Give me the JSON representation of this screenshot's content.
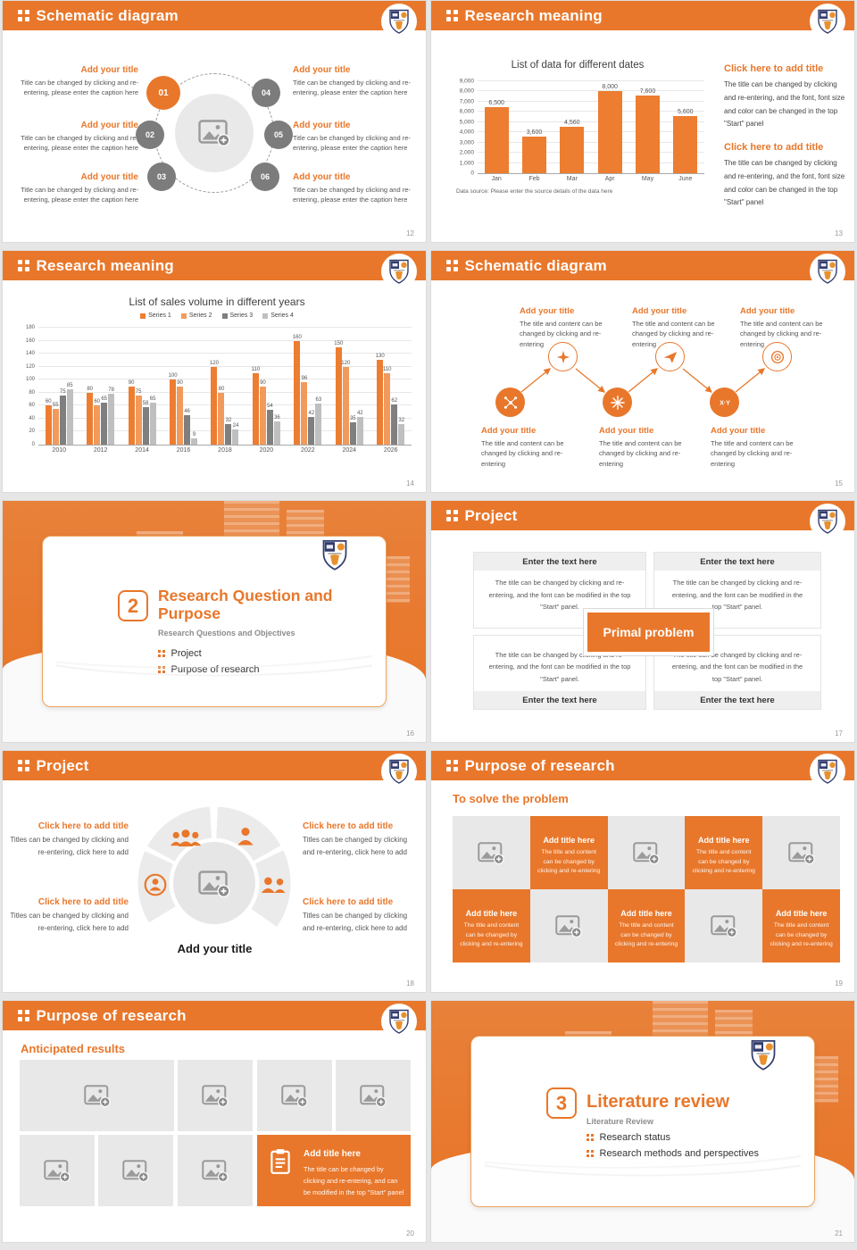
{
  "palette": {
    "accent": "#E8772B",
    "tile_gray": "#E8E8E8",
    "series": [
      "#ED7D31",
      "#F29A5C",
      "#7F7F7F",
      "#BFBFBF"
    ]
  },
  "icons": {
    "logo": "university-crest",
    "placeholder": "image-placeholder-icon",
    "flow": [
      "network-icon",
      "sparkle-icon",
      "snowflake-icon",
      "paper-plane-icon",
      "xy-icon",
      "target-icon"
    ],
    "ring": [
      "group-icon",
      "person-icon",
      "person-circle-icon",
      "group2-icon"
    ],
    "callout": "clipboard-icon"
  },
  "slides": [
    {
      "header": "Schematic diagram",
      "page": "12",
      "items": [
        {
          "num": "01",
          "title": "Add your title",
          "text": "Title can be changed by clicking and re-entering, please enter the caption here"
        },
        {
          "num": "02",
          "title": "Add your title",
          "text": "Title can be changed by clicking and re-entering, please enter the caption here"
        },
        {
          "num": "03",
          "title": "Add your title",
          "text": "Title can be changed by clicking and re-entering, please enter the caption here"
        },
        {
          "num": "04",
          "title": "Add your title",
          "text": "Title can be changed by clicking and re-entering, please enter the caption here"
        },
        {
          "num": "05",
          "title": "Add your title",
          "text": "Title can be changed by clicking and re-entering, please enter the caption here"
        },
        {
          "num": "06",
          "title": "Add your title",
          "text": "Title can be changed by clicking and re-entering, please enter the caption here"
        }
      ]
    },
    {
      "header": "Research meaning",
      "page": "13",
      "blocks": [
        {
          "title": "Click here to add title",
          "text": "The title can be changed by clicking and re-entering, and the font, font size and color can be changed in the top \"Start\" panel"
        },
        {
          "title": "Click here to add title",
          "text": "The title can be changed by clicking and re-entering, and the font, font size and color can be changed in the top \"Start\" panel"
        }
      ]
    },
    {
      "header": "Research meaning",
      "page": "14"
    },
    {
      "header": "Schematic diagram",
      "page": "15",
      "top": [
        {
          "title": "Add your title",
          "text": "The title and content can be changed by clicking and re-entering"
        },
        {
          "title": "Add your title",
          "text": "The title and content can be changed by clicking and re-entering"
        },
        {
          "title": "Add your title",
          "text": "The title and content can be changed by clicking and re-entering"
        }
      ],
      "bottom": [
        {
          "title": "Add your title",
          "text": "The title and content can be changed by clicking and re-entering"
        },
        {
          "title": "Add your title",
          "text": "The title and content can be changed by clicking and re-entering"
        },
        {
          "title": "Add your title",
          "text": "The title and content can be changed by clicking and re-entering"
        }
      ]
    },
    {
      "page": "16",
      "number": "2",
      "title": "Research Question and Purpose",
      "subtitle": "Research Questions and Objectives",
      "items": [
        "Project",
        "Purpose of research"
      ]
    },
    {
      "header": "Project",
      "page": "17",
      "center": "Primal problem",
      "box_header": "Enter the text here",
      "box_text": "The title can be changed by clicking and re-entering, and the font can be modified in the top \"Start\" panel."
    },
    {
      "header": "Project",
      "page": "18",
      "center_label": "Add your title",
      "blocks": [
        {
          "title": "Click here to add title",
          "text": "Titles can be changed by clicking and re-entering, click here to add"
        },
        {
          "title": "Click here to add title",
          "text": "Titles can be changed by clicking and re-entering, click here to add"
        },
        {
          "title": "Click here to add title",
          "text": "Titles can be changed by clicking and re-entering, click here to add"
        },
        {
          "title": "Click here to add title",
          "text": "Titles can be changed by clicking and re-entering, click here to add"
        }
      ]
    },
    {
      "header": "Purpose of research",
      "page": "19",
      "subtitle": "To solve the problem",
      "tile": {
        "title": "Add title here",
        "text": "The title and content can be changed by clicking and re-entering"
      }
    },
    {
      "header": "Purpose of research",
      "page": "20",
      "subtitle": "Anticipated results",
      "callout": {
        "title": "Add title here",
        "text": "The title can be changed by clicking and re-entering, and can be modified in the top \"Start\" panel"
      }
    },
    {
      "page": "21",
      "number": "3",
      "title": "Literature review",
      "subtitle": "Literature Review",
      "items": [
        "Research status",
        "Research methods and perspectives"
      ]
    }
  ],
  "chart_data": [
    {
      "type": "bar",
      "title": "List of data for different dates",
      "categories": [
        "Jan",
        "Feb",
        "Mar",
        "Apr",
        "May",
        "June"
      ],
      "series": [
        {
          "name": "",
          "color": "#ED7D31",
          "values": [
            6500,
            3600,
            4560,
            8000,
            7600,
            5600
          ]
        }
      ],
      "ylim": [
        0,
        9000
      ],
      "ystep": 1000,
      "value_labels": true,
      "number_format": "comma",
      "legend": false,
      "grid": true,
      "source_note": "Data source: Please enter the source details of the data here"
    },
    {
      "type": "bar",
      "title": "List of sales volume in different years",
      "categories": [
        "2010",
        "2012",
        "2014",
        "2016",
        "2018",
        "2020",
        "2022",
        "2024",
        "2026"
      ],
      "series": [
        {
          "name": "Series 1",
          "color": "#ED7D31",
          "values": [
            60,
            80,
            90,
            100,
            120,
            110,
            160,
            150,
            130
          ]
        },
        {
          "name": "Series 2",
          "color": "#F29A5C",
          "values": [
            55,
            60,
            75,
            90,
            80,
            90,
            96,
            120,
            110
          ]
        },
        {
          "name": "Series 3",
          "color": "#7F7F7F",
          "values": [
            75,
            65,
            58,
            46,
            32,
            54,
            42,
            35,
            62
          ]
        },
        {
          "name": "Series 4",
          "color": "#BFBFBF",
          "values": [
            85,
            78,
            65,
            9,
            24,
            36,
            63,
            42,
            32
          ]
        }
      ],
      "ylim": [
        0,
        180
      ],
      "ystep": 20,
      "value_labels": true,
      "legend": true,
      "grid": true
    }
  ]
}
